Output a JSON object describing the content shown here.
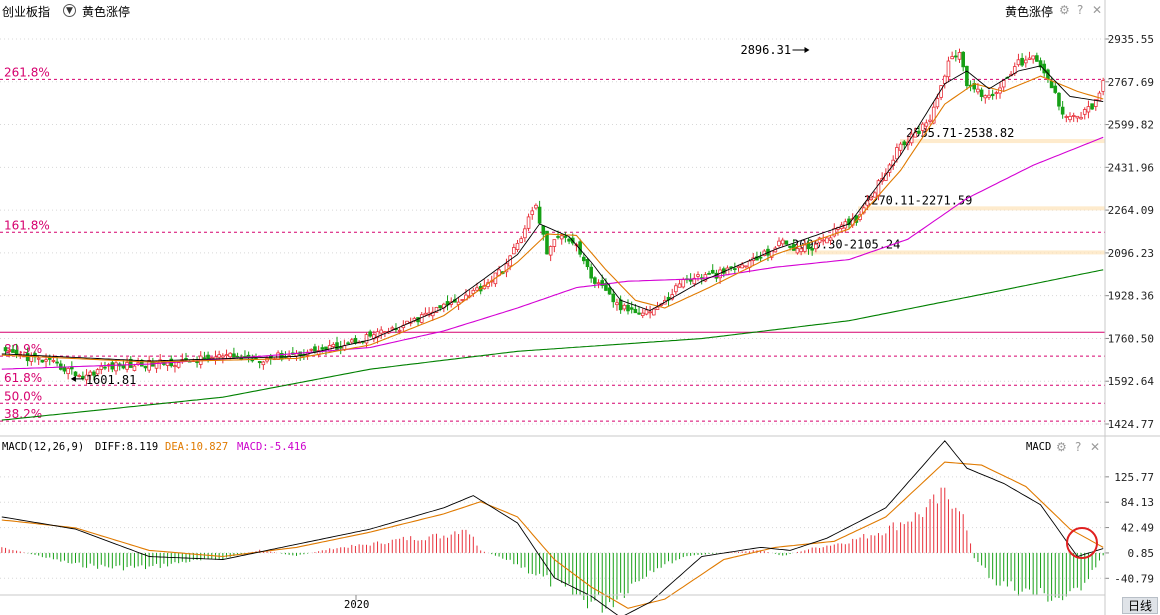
{
  "header": {
    "index_name": "创业板指",
    "indicator_select": "黄色涨停",
    "right_label": "黄色涨停"
  },
  "macd_header": {
    "title": "MACD(12,26,9)",
    "diff": "DIFF:8.119",
    "dea": "DEA:10.827",
    "macd": "MACD:-5.416",
    "right_label": "MACD"
  },
  "footer": {
    "year_label": "2020",
    "period_button": "日线"
  },
  "colors": {
    "up": "#e8303a",
    "down": "#16a016",
    "ma5": "#000000",
    "ma10": "#e07a00",
    "ma60": "#d400d4",
    "ma250": "#008000",
    "fib_line": "#d6006e",
    "diff": "#000000",
    "dea": "#e07a00",
    "macd_label": "#cc00cc",
    "highlight_circle": "#e02020"
  },
  "icons": [
    "dropdown-icon",
    "gear-icon",
    "help-icon",
    "close-icon"
  ],
  "chart_data": [
    {
      "type": "candlestick",
      "y_ticks": [
        "2935.55",
        "2767.69",
        "2599.82",
        "2431.96",
        "2264.09",
        "2096.23",
        "1928.36",
        "1760.50",
        "1592.64",
        "1424.77"
      ],
      "ylim": [
        1424.77,
        2935.55
      ],
      "fib_levels": [
        {
          "label": "261.8%",
          "value": 2777,
          "color": "#d6006e"
        },
        {
          "label": "161.8%",
          "value": 2177,
          "color": "#d6006e"
        },
        {
          "label": "80.9%",
          "value": 1691,
          "color": "#d6006e"
        },
        {
          "label": "61.8%",
          "value": 1577,
          "color": "#d6006e"
        },
        {
          "label": "50.0%",
          "value": 1506,
          "color": "#d6006e"
        },
        {
          "label": "38.2%",
          "value": 1436,
          "color": "#d6006e"
        }
      ],
      "support_line": {
        "value": 1785,
        "color": "#d6006e"
      },
      "zones": [
        {
          "value": 2535,
          "label": "2535.71-2538.82"
        },
        {
          "value": 2271,
          "label": "2270.11-2271.59"
        },
        {
          "value": 2098,
          "label": "2090.30-2105.24"
        }
      ],
      "annotations": [
        {
          "text": "2896.31",
          "x": 219,
          "y": 2896.31
        },
        {
          "text": "1601.81",
          "x": 19,
          "y": 1601.81
        }
      ],
      "close_path": [
        [
          0,
          1705
        ],
        [
          6,
          1690
        ],
        [
          12,
          1670
        ],
        [
          18,
          1638
        ],
        [
          22,
          1610
        ],
        [
          28,
          1650
        ],
        [
          40,
          1660
        ],
        [
          50,
          1670
        ],
        [
          60,
          1690
        ],
        [
          70,
          1680
        ],
        [
          80,
          1700
        ],
        [
          90,
          1725
        ],
        [
          100,
          1770
        ],
        [
          108,
          1800
        ],
        [
          116,
          1860
        ],
        [
          122,
          1900
        ],
        [
          130,
          1960
        ],
        [
          136,
          2030
        ],
        [
          140,
          2130
        ],
        [
          143,
          2230
        ],
        [
          145,
          2280
        ],
        [
          148,
          2100
        ],
        [
          152,
          2175
        ],
        [
          156,
          2130
        ],
        [
          160,
          2000
        ],
        [
          164,
          1940
        ],
        [
          168,
          1880
        ],
        [
          172,
          1870
        ],
        [
          176,
          1870
        ],
        [
          180,
          1900
        ],
        [
          184,
          1980
        ],
        [
          188,
          2000
        ],
        [
          194,
          2010
        ],
        [
          200,
          2040
        ],
        [
          206,
          2080
        ],
        [
          212,
          2140
        ],
        [
          216,
          2110
        ],
        [
          220,
          2120
        ],
        [
          226,
          2180
        ],
        [
          232,
          2230
        ],
        [
          238,
          2370
        ],
        [
          244,
          2520
        ],
        [
          248,
          2560
        ],
        [
          252,
          2630
        ],
        [
          256,
          2790
        ],
        [
          258,
          2880
        ],
        [
          260,
          2870
        ],
        [
          262,
          2760
        ],
        [
          266,
          2720
        ],
        [
          270,
          2720
        ],
        [
          272,
          2780
        ],
        [
          276,
          2840
        ],
        [
          280,
          2860
        ],
        [
          284,
          2780
        ],
        [
          288,
          2650
        ],
        [
          292,
          2630
        ],
        [
          296,
          2670
        ],
        [
          299,
          2760
        ]
      ],
      "ma5_path": [
        [
          0,
          1700
        ],
        [
          40,
          1672
        ],
        [
          80,
          1690
        ],
        [
          100,
          1755
        ],
        [
          120,
          1880
        ],
        [
          140,
          2090
        ],
        [
          146,
          2210
        ],
        [
          154,
          2160
        ],
        [
          160,
          2060
        ],
        [
          168,
          1910
        ],
        [
          176,
          1870
        ],
        [
          190,
          1985
        ],
        [
          210,
          2110
        ],
        [
          230,
          2210
        ],
        [
          244,
          2480
        ],
        [
          256,
          2760
        ],
        [
          262,
          2810
        ],
        [
          268,
          2740
        ],
        [
          276,
          2810
        ],
        [
          282,
          2830
        ],
        [
          290,
          2710
        ],
        [
          299,
          2690
        ]
      ],
      "ma10_path": [
        [
          0,
          1695
        ],
        [
          40,
          1668
        ],
        [
          80,
          1682
        ],
        [
          100,
          1735
        ],
        [
          120,
          1850
        ],
        [
          140,
          2060
        ],
        [
          148,
          2170
        ],
        [
          156,
          2165
        ],
        [
          164,
          2030
        ],
        [
          172,
          1910
        ],
        [
          180,
          1880
        ],
        [
          192,
          1960
        ],
        [
          210,
          2090
        ],
        [
          230,
          2190
        ],
        [
          244,
          2420
        ],
        [
          256,
          2680
        ],
        [
          264,
          2760
        ],
        [
          272,
          2730
        ],
        [
          282,
          2790
        ],
        [
          292,
          2730
        ],
        [
          299,
          2700
        ]
      ],
      "ma60_path": [
        [
          0,
          1640
        ],
        [
          40,
          1660
        ],
        [
          70,
          1690
        ],
        [
          100,
          1725
        ],
        [
          120,
          1790
        ],
        [
          140,
          1880
        ],
        [
          156,
          1960
        ],
        [
          170,
          1985
        ],
        [
          190,
          1995
        ],
        [
          210,
          2040
        ],
        [
          230,
          2070
        ],
        [
          246,
          2150
        ],
        [
          262,
          2310
        ],
        [
          280,
          2440
        ],
        [
          299,
          2550
        ]
      ],
      "ma250_path": [
        [
          0,
          1440
        ],
        [
          60,
          1530
        ],
        [
          100,
          1640
        ],
        [
          140,
          1710
        ],
        [
          190,
          1760
        ],
        [
          230,
          1830
        ],
        [
          270,
          1945
        ],
        [
          299,
          2030
        ]
      ]
    },
    {
      "type": "bar",
      "title": "MACD(12,26,9)",
      "series": [
        {
          "name": "DIFF",
          "last": 8.119
        },
        {
          "name": "DEA",
          "last": 10.827
        },
        {
          "name": "MACD",
          "last": -5.416
        }
      ],
      "y_ticks": [
        "125.77",
        "84.13",
        "42.49",
        "0.85",
        "-40.79"
      ],
      "ylim": [
        -60,
        160
      ],
      "diff_path": [
        [
          0,
          60
        ],
        [
          20,
          40
        ],
        [
          40,
          -5
        ],
        [
          60,
          -10
        ],
        [
          80,
          15
        ],
        [
          100,
          40
        ],
        [
          120,
          75
        ],
        [
          128,
          95
        ],
        [
          132,
          80
        ],
        [
          140,
          50
        ],
        [
          150,
          -40
        ],
        [
          160,
          -70
        ],
        [
          168,
          -105
        ],
        [
          176,
          -80
        ],
        [
          190,
          -5
        ],
        [
          206,
          10
        ],
        [
          214,
          5
        ],
        [
          224,
          25
        ],
        [
          240,
          75
        ],
        [
          256,
          185
        ],
        [
          262,
          140
        ],
        [
          272,
          115
        ],
        [
          282,
          80
        ],
        [
          292,
          -5
        ],
        [
          299,
          8
        ]
      ],
      "dea_path": [
        [
          0,
          55
        ],
        [
          20,
          42
        ],
        [
          40,
          5
        ],
        [
          60,
          -5
        ],
        [
          80,
          10
        ],
        [
          100,
          35
        ],
        [
          120,
          65
        ],
        [
          130,
          85
        ],
        [
          140,
          60
        ],
        [
          150,
          -10
        ],
        [
          160,
          -55
        ],
        [
          170,
          -90
        ],
        [
          180,
          -75
        ],
        [
          196,
          -10
        ],
        [
          210,
          10
        ],
        [
          226,
          20
        ],
        [
          240,
          60
        ],
        [
          256,
          150
        ],
        [
          266,
          145
        ],
        [
          278,
          110
        ],
        [
          290,
          40
        ],
        [
          299,
          10
        ]
      ],
      "macd_hist_path": [
        [
          0,
          10
        ],
        [
          10,
          -5
        ],
        [
          20,
          -20
        ],
        [
          30,
          -25
        ],
        [
          40,
          -25
        ],
        [
          50,
          -15
        ],
        [
          60,
          -10
        ],
        [
          70,
          5
        ],
        [
          80,
          -5
        ],
        [
          90,
          8
        ],
        [
          100,
          15
        ],
        [
          110,
          25
        ],
        [
          120,
          30
        ],
        [
          126,
          45
        ],
        [
          130,
          5
        ],
        [
          140,
          -20
        ],
        [
          146,
          -40
        ],
        [
          152,
          -60
        ],
        [
          158,
          -80
        ],
        [
          164,
          -90
        ],
        [
          170,
          -60
        ],
        [
          176,
          -30
        ],
        [
          186,
          -5
        ],
        [
          196,
          0
        ],
        [
          206,
          5
        ],
        [
          212,
          -5
        ],
        [
          220,
          8
        ],
        [
          230,
          20
        ],
        [
          240,
          40
        ],
        [
          250,
          70
        ],
        [
          256,
          100
        ],
        [
          260,
          85
        ],
        [
          264,
          -10
        ],
        [
          270,
          -50
        ],
        [
          280,
          -70
        ],
        [
          290,
          -80
        ],
        [
          299,
          -5
        ]
      ]
    }
  ]
}
